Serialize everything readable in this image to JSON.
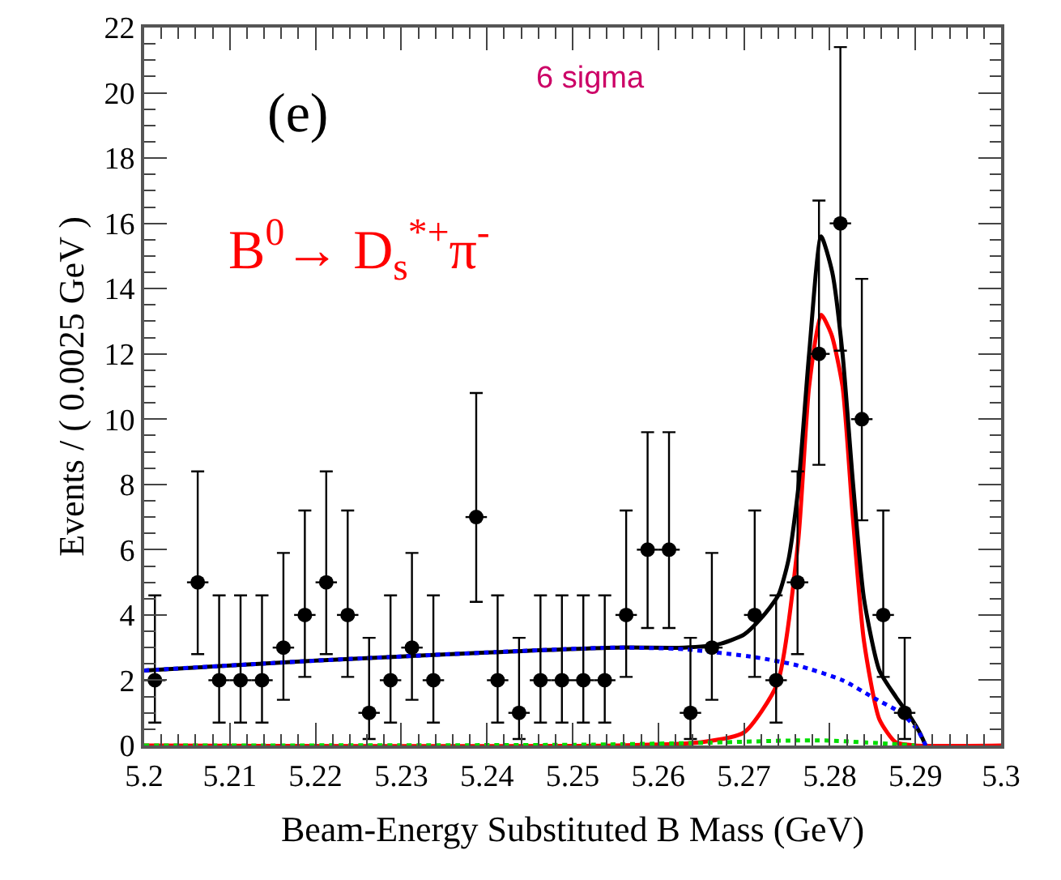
{
  "chart_data": {
    "type": "scatter",
    "xlabel": "Beam-Energy Substituted B Mass (GeV)",
    "ylabel": "Events / ( 0.0025 GeV )",
    "annotations": [
      "(e)",
      "6 sigma",
      "B$^{0}$→ D$_{s}$$^{*+}$π$^{-}$"
    ],
    "x": [
      5.20125,
      5.20375,
      5.20625,
      5.20875,
      5.21125,
      5.21375,
      5.21625,
      5.21875,
      5.22125,
      5.22375,
      5.22625,
      5.22875,
      5.23125,
      5.23375,
      5.23625,
      5.23875,
      5.24125,
      5.24375,
      5.24625,
      5.24875,
      5.25125,
      5.25375,
      5.25625,
      5.25875,
      5.26125,
      5.26375,
      5.26625,
      5.26875,
      5.27125,
      5.27375,
      5.27625,
      5.27875,
      5.28125,
      5.28375,
      5.28625,
      5.28875
    ],
    "xlim": [
      5.2,
      5.3
    ],
    "xticks": [
      5.2,
      5.21,
      5.22,
      5.23,
      5.24,
      5.25,
      5.26,
      5.27,
      5.28,
      5.29,
      5.3
    ],
    "ylim": [
      0,
      22
    ],
    "yticks": [
      0,
      2,
      4,
      6,
      8,
      10,
      12,
      14,
      16,
      18,
      20,
      22
    ],
    "series": [
      {
        "type": "line",
        "color": "#ff0000",
        "line_style": "solid",
        "marker": "none",
        "x": [
          5.2,
          5.255,
          5.265,
          5.27,
          5.2739,
          5.2763,
          5.2776,
          5.279,
          5.2802,
          5.2815,
          5.2827,
          5.284,
          5.2858,
          5.2877,
          5.29,
          5.3
        ],
        "values": [
          0,
          0,
          0.1,
          0.4,
          1.9,
          6.2,
          11,
          13.2,
          12.6,
          11,
          7,
          3.2,
          0.8,
          0.1,
          0,
          0
        ]
      },
      {
        "type": "line",
        "color": "#00dd00",
        "line_style": "dotted",
        "marker": "none",
        "x": [
          5.2,
          5.25,
          5.265,
          5.275,
          5.28,
          5.287,
          5.29
        ],
        "values": [
          0,
          0.02,
          0.08,
          0.15,
          0.15,
          0.05,
          0
        ]
      },
      {
        "type": "line",
        "color": "#000000",
        "line_style": "solid",
        "marker": "none",
        "x": [
          5.2,
          5.22,
          5.24,
          5.255,
          5.263,
          5.267,
          5.27,
          5.272,
          5.274,
          5.2752,
          5.2763,
          5.2776,
          5.279,
          5.2803,
          5.2815,
          5.2827,
          5.284,
          5.2858,
          5.2877,
          5.2896,
          5.2905,
          5.2912
        ],
        "values": [
          2.3,
          2.6,
          2.85,
          3.0,
          3.0,
          3.1,
          3.4,
          3.9,
          4.6,
          5.7,
          7.8,
          12,
          15.6,
          14.5,
          12,
          8.1,
          4.5,
          2.3,
          1.5,
          0.8,
          0.4,
          0
        ]
      },
      {
        "type": "line",
        "color": "#0000ff",
        "line_style": "dotted",
        "marker": "none",
        "x": [
          5.2,
          5.22,
          5.24,
          5.255,
          5.263,
          5.2714,
          5.2763,
          5.2815,
          5.2852,
          5.2883,
          5.2902,
          5.2912
        ],
        "values": [
          2.3,
          2.6,
          2.85,
          3.0,
          2.95,
          2.7,
          2.45,
          2.0,
          1.45,
          1.0,
          0.5,
          0
        ]
      },
      {
        "color": "#000000",
        "marker": "circle",
        "values": [
          2,
          null,
          5,
          2,
          2,
          2,
          3,
          4,
          5,
          4,
          1,
          2,
          3,
          2,
          null,
          7,
          2,
          1,
          2,
          2,
          2,
          2,
          4,
          6,
          6,
          1,
          3,
          null,
          4,
          2,
          5,
          12,
          16,
          10,
          4,
          1
        ],
        "errors": [
          [
            0.7,
            4.6
          ],
          null,
          [
            2.8,
            8.4
          ],
          [
            0.7,
            4.6
          ],
          [
            0.7,
            4.6
          ],
          [
            0.7,
            4.6
          ],
          [
            1.4,
            5.9
          ],
          [
            2.1,
            7.2
          ],
          [
            2.8,
            8.4
          ],
          [
            2.1,
            7.2
          ],
          [
            0.2,
            3.3
          ],
          [
            0.7,
            4.6
          ],
          [
            1.4,
            5.9
          ],
          [
            0.7,
            4.6
          ],
          null,
          [
            4.4,
            10.8
          ],
          [
            0.7,
            4.6
          ],
          [
            0.2,
            3.3
          ],
          [
            0.7,
            4.6
          ],
          [
            0.7,
            4.6
          ],
          [
            0.7,
            4.6
          ],
          [
            0.7,
            4.6
          ],
          [
            2.1,
            7.2
          ],
          [
            3.6,
            9.6
          ],
          [
            3.6,
            9.6
          ],
          [
            0.2,
            3.3
          ],
          [
            1.4,
            5.9
          ],
          null,
          [
            2.1,
            7.2
          ],
          [
            0.7,
            4.6
          ],
          [
            2.8,
            8.4
          ],
          [
            8.6,
            16.7
          ],
          [
            12.1,
            21.4
          ],
          [
            6.9,
            14.3
          ],
          [
            2.1,
            7.2
          ],
          [
            0.2,
            3.3
          ]
        ],
        "xerrors": [
          0.00125,
          null,
          0.00125,
          0.00125,
          0.00125,
          0.00125,
          0.00125,
          0.00125,
          0.00125,
          0.00125,
          0.00125,
          0.00125,
          0.00125,
          0.00125,
          null,
          0.00125,
          0.00125,
          0.00125,
          0.00125,
          0.00125,
          0.00125,
          0.00125,
          0.00125,
          0.00125,
          0.00125,
          0.00125,
          0.00125,
          null,
          0.00125,
          0.00125,
          0.00125,
          0.00125,
          0.00125,
          0.00125,
          0.00125,
          0.00125
        ]
      }
    ]
  }
}
